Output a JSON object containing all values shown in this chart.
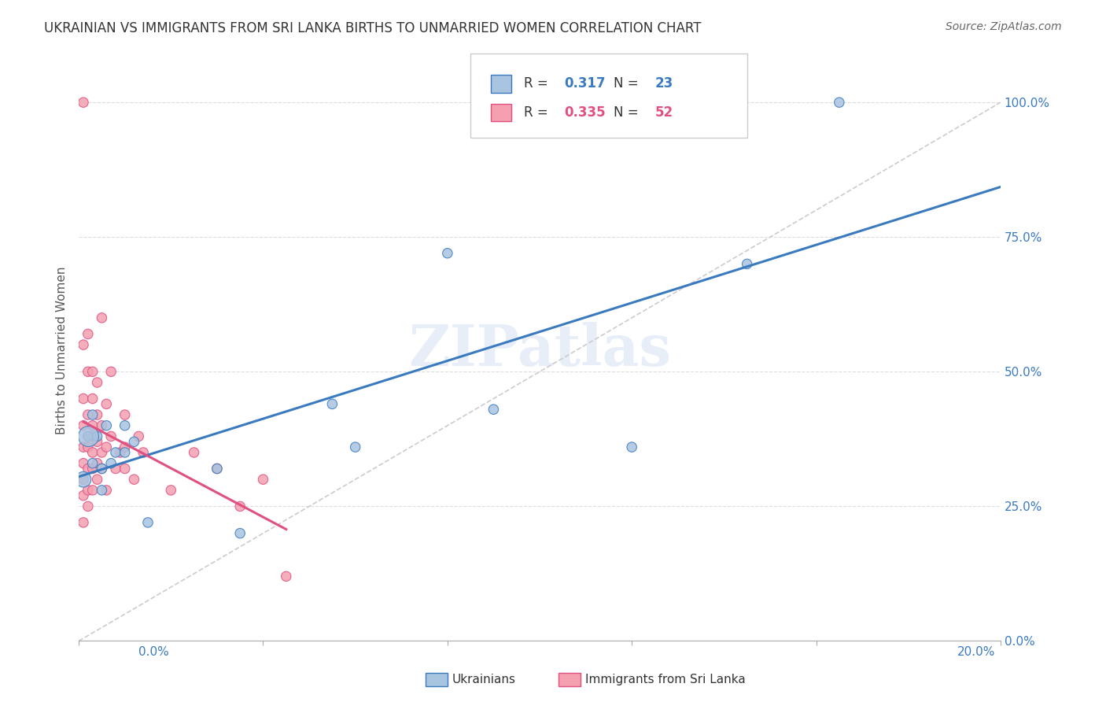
{
  "title": "UKRAINIAN VS IMMIGRANTS FROM SRI LANKA BIRTHS TO UNMARRIED WOMEN CORRELATION CHART",
  "source": "Source: ZipAtlas.com",
  "ylabel": "Births to Unmarried Women",
  "ytick_values": [
    0.0,
    0.25,
    0.5,
    0.75,
    1.0
  ],
  "xlim": [
    0.0,
    0.2
  ],
  "ylim": [
    0.0,
    1.08
  ],
  "watermark": "ZIPatlas",
  "blue_R": 0.317,
  "blue_N": 23,
  "pink_R": 0.335,
  "pink_N": 52,
  "blue_color": "#a8c4e0",
  "pink_color": "#f4a0b0",
  "blue_line_color": "#3a7abf",
  "pink_line_color": "#e05080",
  "diag_line_color": "#cccccc",
  "blue_points_x": [
    0.001,
    0.002,
    0.003,
    0.003,
    0.004,
    0.005,
    0.005,
    0.006,
    0.007,
    0.008,
    0.01,
    0.01,
    0.012,
    0.015,
    0.03,
    0.035,
    0.055,
    0.06,
    0.08,
    0.09,
    0.12,
    0.145,
    0.165
  ],
  "blue_points_y": [
    0.3,
    0.38,
    0.33,
    0.42,
    0.38,
    0.28,
    0.32,
    0.4,
    0.33,
    0.35,
    0.35,
    0.4,
    0.37,
    0.22,
    0.32,
    0.2,
    0.44,
    0.36,
    0.72,
    0.43,
    0.36,
    0.7,
    1.0
  ],
  "blue_sizes": [
    200,
    80,
    80,
    80,
    80,
    80,
    80,
    80,
    80,
    80,
    80,
    80,
    80,
    80,
    80,
    80,
    80,
    80,
    80,
    80,
    80,
    80,
    80
  ],
  "pink_points_x": [
    0.001,
    0.001,
    0.001,
    0.001,
    0.001,
    0.001,
    0.001,
    0.001,
    0.001,
    0.002,
    0.002,
    0.002,
    0.002,
    0.002,
    0.002,
    0.002,
    0.002,
    0.003,
    0.003,
    0.003,
    0.003,
    0.003,
    0.003,
    0.003,
    0.004,
    0.004,
    0.004,
    0.004,
    0.004,
    0.005,
    0.005,
    0.005,
    0.005,
    0.006,
    0.006,
    0.006,
    0.007,
    0.007,
    0.008,
    0.009,
    0.01,
    0.01,
    0.01,
    0.012,
    0.013,
    0.014,
    0.02,
    0.025,
    0.03,
    0.035,
    0.04,
    0.045
  ],
  "pink_points_y": [
    0.22,
    0.27,
    0.3,
    0.33,
    0.36,
    0.4,
    0.45,
    0.55,
    1.0,
    0.25,
    0.28,
    0.32,
    0.36,
    0.38,
    0.42,
    0.5,
    0.57,
    0.28,
    0.32,
    0.35,
    0.38,
    0.4,
    0.45,
    0.5,
    0.3,
    0.33,
    0.37,
    0.42,
    0.48,
    0.32,
    0.35,
    0.4,
    0.6,
    0.28,
    0.36,
    0.44,
    0.38,
    0.5,
    0.32,
    0.35,
    0.32,
    0.36,
    0.42,
    0.3,
    0.38,
    0.35,
    0.28,
    0.35,
    0.32,
    0.25,
    0.3,
    0.12
  ],
  "pink_sizes": [
    80,
    80,
    80,
    80,
    80,
    80,
    80,
    80,
    80,
    80,
    80,
    80,
    80,
    80,
    80,
    80,
    80,
    80,
    80,
    80,
    80,
    80,
    80,
    80,
    80,
    80,
    80,
    80,
    80,
    80,
    80,
    80,
    80,
    80,
    80,
    80,
    80,
    80,
    80,
    80,
    80,
    80,
    80,
    80,
    80,
    80,
    80,
    80,
    80,
    80,
    80,
    80
  ]
}
